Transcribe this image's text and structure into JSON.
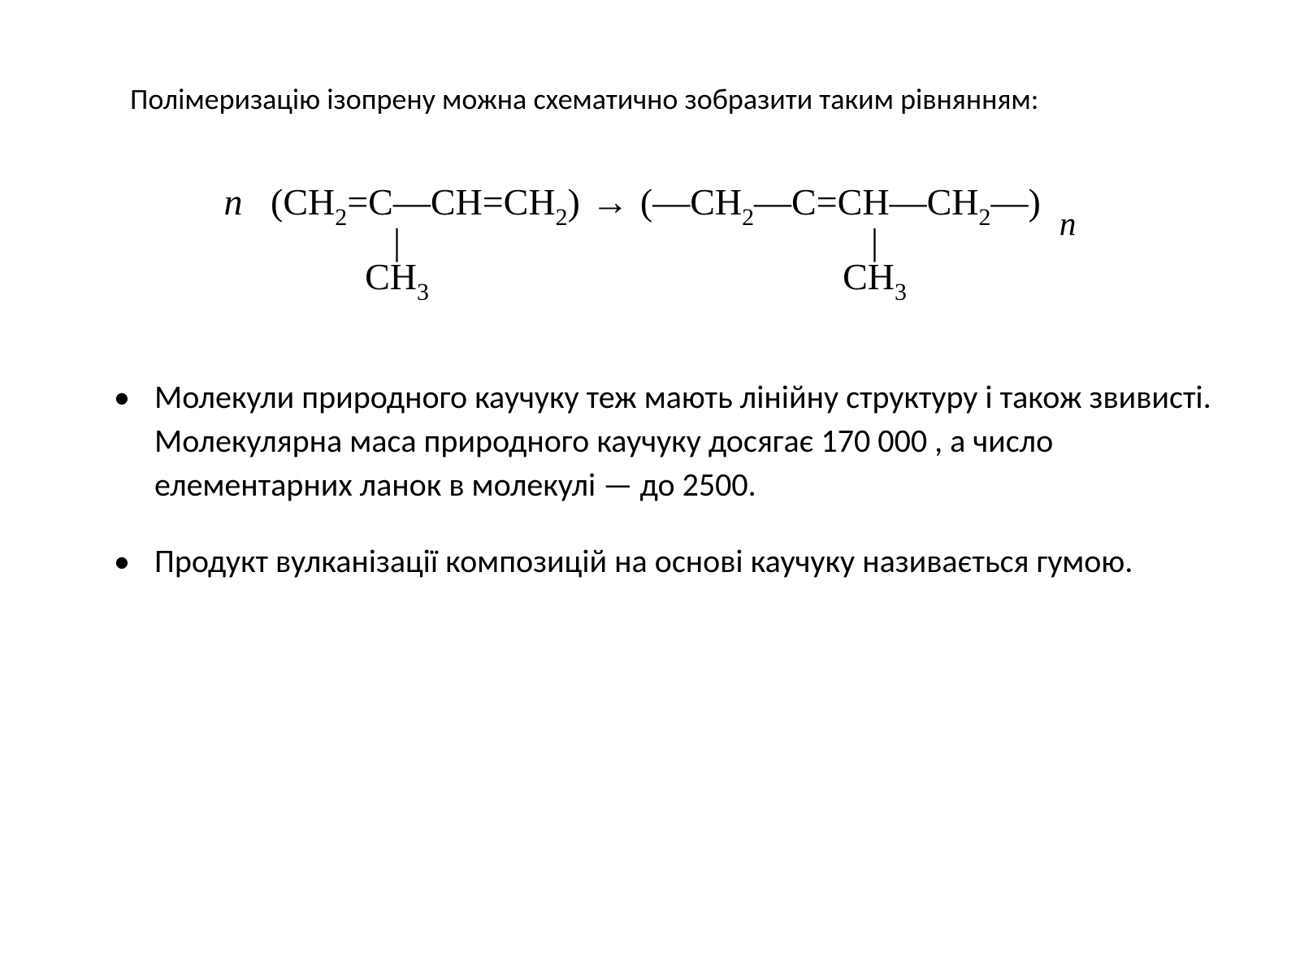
{
  "heading": "Полімеризацію ізопрену можна схематично зобразити таким рівнянням:",
  "equation": {
    "n": "n",
    "left_open": "(",
    "left_formula_parts": [
      "CH",
      "2",
      "=C—CH=CH",
      "2"
    ],
    "left_close": ")",
    "arrow": "→",
    "right_open": "(",
    "right_formula_parts": [
      "—CH",
      "2",
      "—C=CH—CH",
      "2",
      "—"
    ],
    "right_close": ")",
    "sub_n": "n",
    "methyl_bond": "|",
    "methyl_left": "CH",
    "methyl_left_sub": "3",
    "methyl_right": "CH",
    "methyl_right_sub": "3"
  },
  "bullets": [
    "Молекули природного каучуку теж мають лінійну структуру і також звивисті. Молекулярна маса природного каучуку досягає 170 000 , а число елементарних ланок в молекулі — до 2500.",
    "Продукт вулканізації композицій на основі каучуку називається гумою."
  ],
  "style": {
    "background_color": "#ffffff",
    "text_color": "#000000",
    "heading_fontsize": 36,
    "equation_fontsize": 46,
    "body_fontsize": 40,
    "font_body": "Calibri",
    "font_equation": "Times New Roman"
  }
}
